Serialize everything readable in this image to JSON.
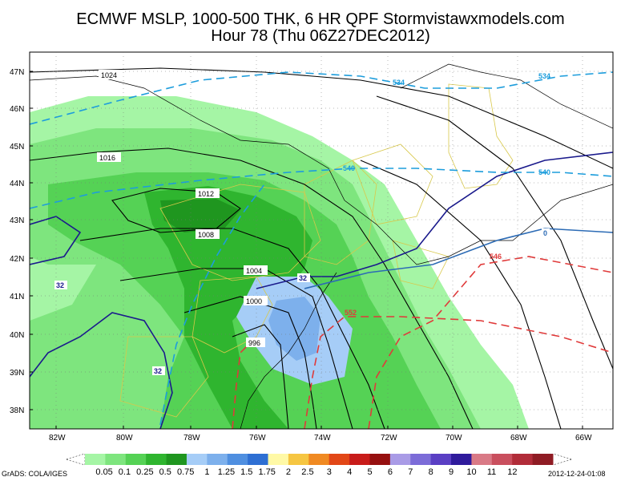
{
  "header": {
    "title_line1": "ECMWF MSLP, 1000-500 THK, 6 HR QPF Stormvistawxmodels.com",
    "title_line2": "Hour 78 (Thu 06Z27DEC2012)"
  },
  "axes": {
    "lat_labels": [
      "47N",
      "46N",
      "45N",
      "44N",
      "43N",
      "42N",
      "41N",
      "40N",
      "39N",
      "38N"
    ],
    "lon_labels": [
      "82W",
      "80W",
      "78W",
      "76W",
      "74W",
      "72W",
      "70W",
      "68W",
      "66W"
    ]
  },
  "pressure_labels": [
    "1024",
    "1016",
    "1012",
    "1008",
    "1004",
    "1000",
    "996"
  ],
  "thickness_labels": [
    "534",
    "534",
    "540",
    "540",
    "546",
    "552"
  ],
  "temp_labels": [
    "32",
    "32",
    "32",
    "0"
  ],
  "legend": {
    "values": [
      "0.05",
      "0.1",
      "0.25",
      "0.5",
      "0.75",
      "1",
      "1.25",
      "1.5",
      "1.75",
      "2",
      "2.5",
      "3",
      "4",
      "5",
      "6",
      "7",
      "8",
      "9",
      "10",
      "11",
      "12"
    ],
    "colors": [
      "#a5f5a5",
      "#7ee57e",
      "#55d255",
      "#2fb52f",
      "#1f961f",
      "#a6cdf7",
      "#7db0ec",
      "#4f8fe0",
      "#2e6fd3",
      "#fff9a6",
      "#f6c642",
      "#f08a22",
      "#e24717",
      "#c81c1a",
      "#961010",
      "#a99be6",
      "#7c6cd8",
      "#5a3fc4",
      "#2f1b9c",
      "#d97a86",
      "#c94f5e",
      "#b12c39",
      "#8f1c24"
    ]
  },
  "footer": {
    "left": "GrADS: COLA/IGES",
    "right": "2012-12-24-01:08"
  },
  "colors": {
    "precip_light": "#a5f5a5",
    "precip_mid": "#55d255",
    "precip_dark": "#2fb52f",
    "precip_blue": "#a6cdf7",
    "isobar": "#000000",
    "thickness_cold": "#1d9ddc",
    "thickness_warm": "#e03a3a",
    "freezing": "#1a1a8c",
    "borders": "#d8c84a"
  }
}
